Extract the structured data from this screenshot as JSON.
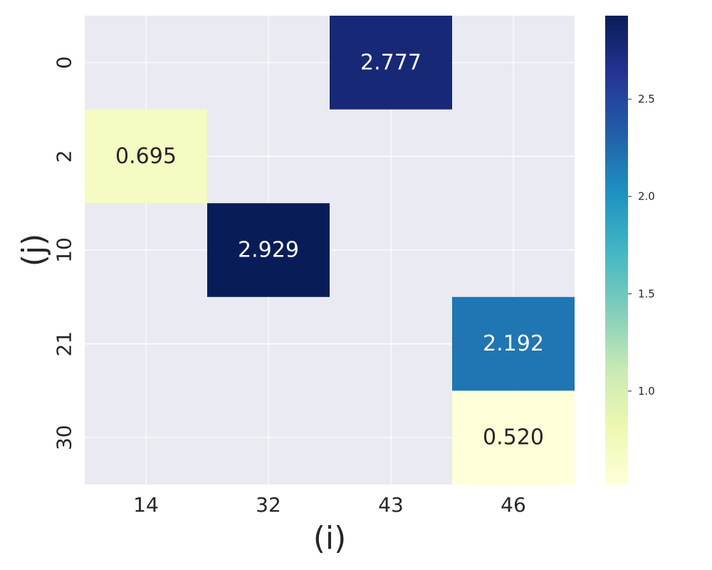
{
  "chart_data": {
    "type": "heatmap",
    "xlabel": "(i)",
    "ylabel": "(j)",
    "x_categories": [
      "14",
      "32",
      "43",
      "46"
    ],
    "y_categories": [
      "0",
      "2",
      "10",
      "21",
      "30"
    ],
    "cells": [
      {
        "x": "43",
        "y": "0",
        "value": 2.777,
        "label": "2.777"
      },
      {
        "x": "14",
        "y": "2",
        "value": 0.695,
        "label": "0.695"
      },
      {
        "x": "32",
        "y": "10",
        "value": 2.929,
        "label": "2.929"
      },
      {
        "x": "46",
        "y": "21",
        "value": 2.192,
        "label": "2.192"
      },
      {
        "x": "46",
        "y": "30",
        "value": 0.52,
        "label": "0.520"
      }
    ],
    "colorbar": {
      "colormap": "YlGnBu",
      "range": [
        0.52,
        2.929
      ],
      "ticks": [
        1.0,
        1.5,
        2.0,
        2.5
      ],
      "tick_labels": [
        "1.0",
        "1.5",
        "2.0",
        "2.5"
      ]
    },
    "grid": true,
    "colors": {
      "background": "#eaeaf2",
      "grid": "#ffffff"
    }
  }
}
